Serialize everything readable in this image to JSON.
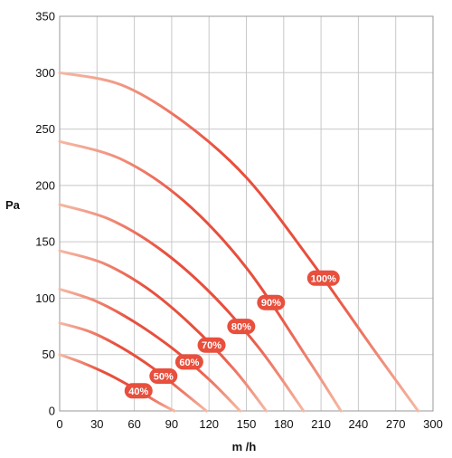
{
  "chart_data": {
    "type": "line",
    "title": "",
    "xlabel": "m /h",
    "ylabel": "Pa",
    "xlim": [
      0,
      300
    ],
    "ylim": [
      0,
      350
    ],
    "x_ticks": [
      0,
      30,
      60,
      90,
      120,
      150,
      180,
      210,
      240,
      270,
      300
    ],
    "y_ticks": [
      0,
      50,
      100,
      150,
      200,
      250,
      300,
      350
    ],
    "grid": true,
    "colors": {
      "start": "#f5b8a3",
      "end": "#e84f3d",
      "badge": "#e84f3d"
    },
    "series": [
      {
        "name": "40%",
        "x": [
          0,
          20,
          40,
          60,
          80,
          92
        ],
        "y": [
          50,
          42,
          32,
          20,
          7,
          0
        ]
      },
      {
        "name": "50%",
        "x": [
          0,
          25,
          50,
          75,
          100,
          118
        ],
        "y": [
          78,
          70,
          56,
          38,
          16,
          0
        ]
      },
      {
        "name": "60%",
        "x": [
          0,
          30,
          60,
          90,
          120,
          145
        ],
        "y": [
          108,
          97,
          79,
          56,
          28,
          0
        ]
      },
      {
        "name": "70%",
        "x": [
          0,
          35,
          70,
          105,
          140,
          166
        ],
        "y": [
          142,
          131,
          109,
          77,
          37,
          0
        ]
      },
      {
        "name": "80%",
        "x": [
          0,
          40,
          80,
          120,
          160,
          196
        ],
        "y": [
          183,
          170,
          144,
          106,
          56,
          0
        ]
      },
      {
        "name": "90%",
        "x": [
          0,
          50,
          100,
          150,
          200,
          226
        ],
        "y": [
          239,
          223,
          186,
          127,
          45,
          0
        ]
      },
      {
        "name": "100%",
        "x": [
          0,
          50,
          100,
          150,
          200,
          250,
          288
        ],
        "y": [
          300,
          289,
          256,
          207,
          136,
          58,
          0
        ]
      }
    ]
  }
}
